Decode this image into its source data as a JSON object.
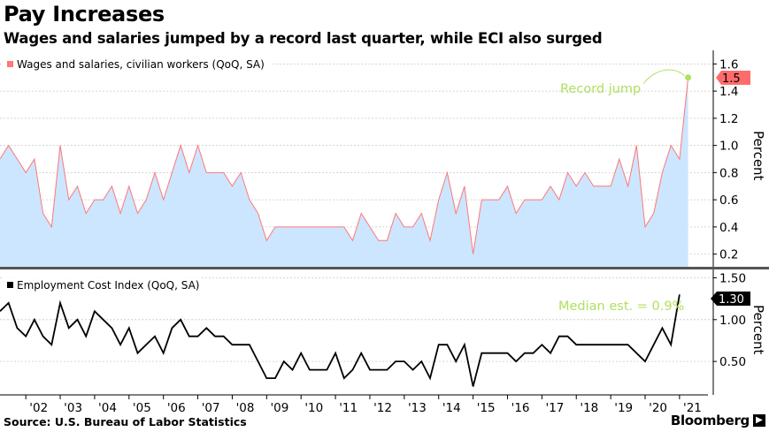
{
  "header": {
    "title": "Pay Increases",
    "subtitle": "Wages and salaries jumped by a record last quarter, while ECI also surged"
  },
  "footer": {
    "source": "Source: U.S. Bureau of Labor Statistics",
    "brand": "Bloomberg"
  },
  "colors": {
    "area_fill": "#cce6ff",
    "area_line": "#ff7777",
    "eci_line": "#000000",
    "annotation": "#b0e060",
    "top_badge": "#ff6b6b",
    "grid": "#c8c8c8",
    "panel_divider": "#555555"
  },
  "chart_data": [
    {
      "type": "area",
      "panel": "top",
      "legend": "Wages and salaries, civilian workers (QoQ, SA)",
      "ylabel": "Percent",
      "ylim": [
        0.1,
        1.7
      ],
      "yticks": [
        "0.2",
        "0.4",
        "0.6",
        "0.8",
        "1.0",
        "1.2",
        "1.4",
        "1.6"
      ],
      "grid": true,
      "legend_position": "top-left",
      "last_value_label": "1.5",
      "annotation": "Record jump",
      "x_start": "2001 Q2",
      "values": [
        0.9,
        1.0,
        0.9,
        0.8,
        0.9,
        0.5,
        0.4,
        1.0,
        0.6,
        0.7,
        0.5,
        0.6,
        0.6,
        0.7,
        0.5,
        0.7,
        0.5,
        0.6,
        0.8,
        0.6,
        0.8,
        1.0,
        0.8,
        1.0,
        0.8,
        0.8,
        0.8,
        0.7,
        0.8,
        0.6,
        0.5,
        0.3,
        0.4,
        0.4,
        0.4,
        0.4,
        0.4,
        0.4,
        0.4,
        0.4,
        0.4,
        0.3,
        0.5,
        0.4,
        0.3,
        0.3,
        0.5,
        0.4,
        0.4,
        0.5,
        0.3,
        0.6,
        0.8,
        0.5,
        0.7,
        0.2,
        0.6,
        0.6,
        0.6,
        0.7,
        0.5,
        0.6,
        0.6,
        0.6,
        0.7,
        0.6,
        0.8,
        0.7,
        0.8,
        0.7,
        0.7,
        0.7,
        0.9,
        0.7,
        1.0,
        0.4,
        0.5,
        0.8,
        1.0,
        0.9,
        1.5
      ]
    },
    {
      "type": "line",
      "panel": "bottom",
      "legend": "Employment Cost Index (QoQ, SA)",
      "ylabel": "Percent",
      "ylim": [
        0.1,
        1.6
      ],
      "yticks": [
        "0.50",
        "1.00",
        "1.50"
      ],
      "grid": true,
      "legend_position": "top-left",
      "last_value_label": "1.30",
      "annotation": "Median est. = 0.9%",
      "x_start": "2001 Q2",
      "values": [
        1.1,
        1.2,
        0.9,
        0.8,
        1.0,
        0.8,
        0.7,
        1.2,
        0.9,
        1.0,
        0.8,
        1.1,
        1.0,
        0.9,
        0.7,
        0.9,
        0.6,
        0.7,
        0.8,
        0.6,
        0.9,
        1.0,
        0.8,
        0.8,
        0.9,
        0.8,
        0.8,
        0.7,
        0.7,
        0.7,
        0.5,
        0.3,
        0.3,
        0.5,
        0.4,
        0.6,
        0.4,
        0.4,
        0.4,
        0.6,
        0.3,
        0.4,
        0.6,
        0.4,
        0.4,
        0.4,
        0.5,
        0.5,
        0.4,
        0.5,
        0.3,
        0.7,
        0.7,
        0.5,
        0.7,
        0.2,
        0.6,
        0.6,
        0.6,
        0.6,
        0.5,
        0.6,
        0.6,
        0.7,
        0.6,
        0.8,
        0.8,
        0.7,
        0.7,
        0.7,
        0.7,
        0.7,
        0.7,
        0.7,
        0.6,
        0.5,
        0.7,
        0.9,
        0.7,
        1.3
      ]
    }
  ],
  "x_axis": {
    "tick_labels": [
      "'02",
      "'03",
      "'04",
      "'05",
      "'06",
      "'07",
      "'08",
      "'09",
      "'10",
      "'11",
      "'12",
      "'13",
      "'14",
      "'15",
      "'16",
      "'17",
      "'18",
      "'19",
      "'20",
      "'21"
    ]
  }
}
